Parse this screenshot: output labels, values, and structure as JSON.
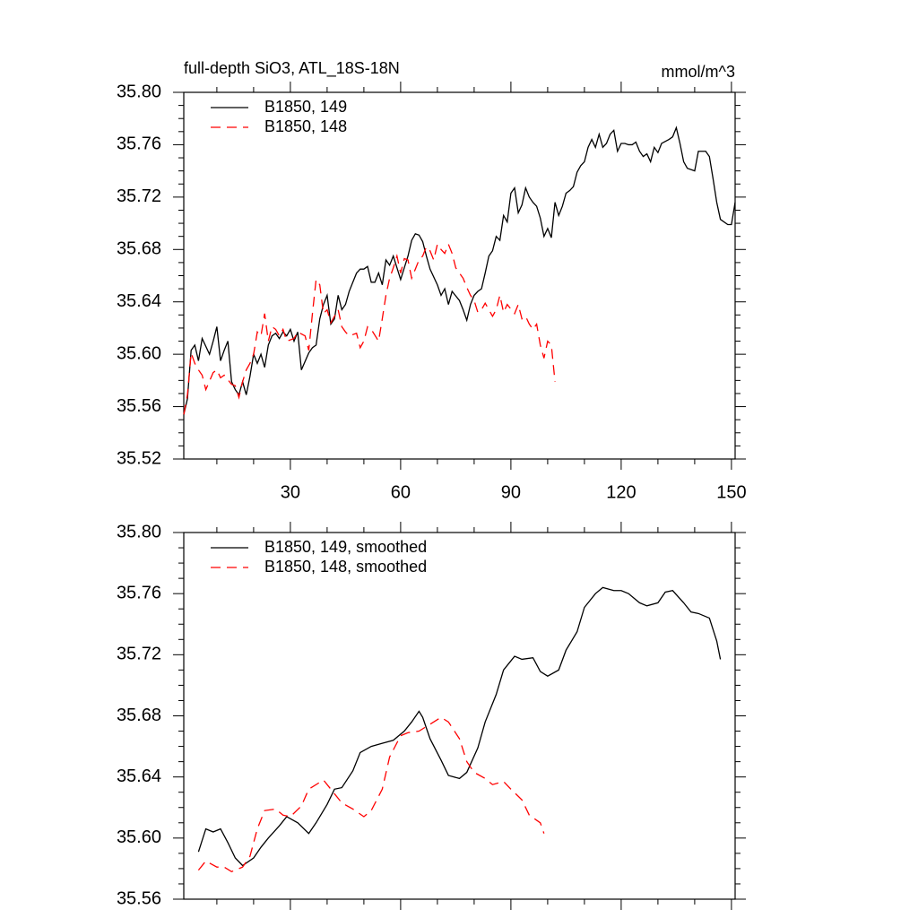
{
  "chart_data": [
    {
      "type": "line",
      "title": "full-depth SiO3, ATL_18S-18N",
      "units": "mmol/m^3",
      "xlim": [
        1,
        151
      ],
      "xticks": [
        30,
        60,
        90,
        120,
        150
      ],
      "x_minor_per_major": 3,
      "show_xtick_labels": true,
      "ylim": [
        35.52,
        35.8
      ],
      "yticks": [
        35.52,
        35.56,
        {
          "value": 35.6,
          "label": "35.60"
        },
        35.64,
        35.68,
        35.72,
        35.76,
        {
          "value": 35.8,
          "label": "35.80"
        }
      ],
      "y_minor_per_major": 4,
      "legend": "upper left",
      "series": [
        {
          "name": "B1850, 149",
          "color": "#000000",
          "dash": "solid",
          "x": [
            1,
            2,
            3,
            4,
            5,
            6,
            8,
            9,
            10,
            11,
            12,
            13,
            14,
            15,
            16,
            17,
            18,
            19,
            20,
            21,
            22,
            23,
            24,
            25,
            26,
            27,
            28,
            29,
            30,
            31,
            32,
            33,
            35,
            36,
            37,
            38,
            39,
            40,
            41,
            42,
            43,
            44,
            45,
            46,
            47,
            48,
            49,
            50,
            51,
            52,
            53,
            54,
            55,
            56,
            57,
            58,
            59,
            60,
            61,
            62,
            63,
            64,
            65,
            66,
            67,
            68,
            70,
            71,
            72,
            73,
            74,
            76,
            77,
            78,
            79,
            80,
            81,
            82,
            83,
            84,
            85,
            86,
            87,
            88,
            89,
            90,
            91,
            92,
            93,
            94,
            95,
            96,
            97,
            98,
            99,
            100,
            101,
            102,
            103,
            104,
            105,
            106,
            107,
            108,
            109,
            110,
            111,
            112,
            113,
            114,
            115,
            116,
            117,
            118,
            119,
            120,
            121,
            122,
            123,
            124,
            125,
            126,
            127,
            128,
            129,
            130,
            131,
            133,
            134,
            135,
            136,
            137,
            138,
            140,
            141,
            143,
            144,
            145,
            146,
            147,
            149,
            150,
            151
          ],
          "values": [
            35.554,
            35.566,
            35.603,
            35.607,
            35.595,
            35.612,
            35.6,
            35.61,
            35.621,
            35.595,
            35.603,
            35.61,
            35.579,
            35.573,
            35.569,
            35.579,
            35.569,
            35.583,
            35.6,
            35.593,
            35.6,
            35.59,
            35.607,
            35.614,
            35.616,
            35.612,
            35.617,
            35.614,
            35.619,
            35.61,
            35.617,
            35.588,
            35.601,
            35.605,
            35.607,
            35.627,
            35.638,
            35.645,
            35.623,
            35.627,
            35.645,
            35.634,
            35.638,
            35.648,
            35.655,
            35.662,
            35.665,
            35.665,
            35.667,
            35.655,
            35.655,
            35.662,
            35.653,
            35.672,
            35.668,
            35.675,
            35.666,
            35.657,
            35.666,
            35.675,
            35.687,
            35.692,
            35.691,
            35.686,
            35.675,
            35.665,
            35.653,
            35.645,
            35.65,
            35.638,
            35.648,
            35.641,
            35.634,
            35.626,
            35.638,
            35.645,
            35.648,
            35.65,
            35.662,
            35.675,
            35.679,
            35.69,
            35.687,
            35.706,
            35.701,
            35.723,
            35.727,
            35.708,
            35.714,
            35.727,
            35.72,
            35.716,
            35.713,
            35.704,
            35.69,
            35.696,
            35.689,
            35.716,
            35.706,
            35.713,
            35.723,
            35.725,
            35.728,
            35.739,
            35.744,
            35.747,
            35.758,
            35.764,
            35.758,
            35.768,
            35.758,
            35.761,
            35.768,
            35.771,
            35.755,
            35.761,
            35.761,
            35.76,
            35.76,
            35.762,
            35.755,
            35.751,
            35.753,
            35.747,
            35.758,
            35.754,
            35.761,
            35.764,
            35.766,
            35.773,
            35.761,
            35.747,
            35.742,
            35.74,
            35.755,
            35.755,
            35.751,
            35.734,
            35.716,
            35.703,
            35.699,
            35.699,
            35.716
          ]
        },
        {
          "name": "B1850, 148",
          "color": "#ff0000",
          "dash": "dashed",
          "x": [
            1,
            2,
            3,
            4,
            5,
            6,
            7,
            9,
            10,
            11,
            12,
            14,
            15,
            16,
            17,
            18,
            19,
            20,
            21,
            22,
            23,
            24,
            25,
            26,
            27,
            28,
            29,
            31,
            32,
            34,
            35,
            36,
            37,
            38,
            39,
            40,
            41,
            42,
            43,
            44,
            45,
            46,
            48,
            49,
            50,
            51,
            52,
            54,
            55,
            56,
            57,
            58,
            59,
            60,
            61,
            62,
            63,
            64,
            65,
            66,
            67,
            68,
            69,
            70,
            71,
            72,
            73,
            74,
            75,
            77,
            78,
            79,
            80,
            81,
            82,
            83,
            84,
            85,
            86,
            87,
            88,
            89,
            91,
            92,
            93,
            94,
            95,
            96,
            97,
            98,
            99,
            100,
            101,
            102
          ],
          "values": [
            35.554,
            35.569,
            35.601,
            35.593,
            35.588,
            35.584,
            35.573,
            35.586,
            35.588,
            35.582,
            35.584,
            35.577,
            35.576,
            35.567,
            35.579,
            35.588,
            35.593,
            35.6,
            35.617,
            35.614,
            35.631,
            35.61,
            35.621,
            35.619,
            35.614,
            35.619,
            35.61,
            35.612,
            35.617,
            35.614,
            35.603,
            35.631,
            35.657,
            35.653,
            35.631,
            35.634,
            35.624,
            35.629,
            35.634,
            35.621,
            35.617,
            35.614,
            35.616,
            35.605,
            35.61,
            35.621,
            35.619,
            35.61,
            35.627,
            35.645,
            35.658,
            35.666,
            35.675,
            35.662,
            35.673,
            35.672,
            35.658,
            35.665,
            35.672,
            35.675,
            35.682,
            35.679,
            35.672,
            35.684,
            35.68,
            35.677,
            35.684,
            35.677,
            35.666,
            35.658,
            35.651,
            35.645,
            35.641,
            35.632,
            35.634,
            35.639,
            35.634,
            35.629,
            35.634,
            35.645,
            35.632,
            35.638,
            35.631,
            35.638,
            35.627,
            35.629,
            35.623,
            35.619,
            35.623,
            35.607,
            35.597,
            35.61,
            35.607,
            35.579
          ]
        }
      ]
    },
    {
      "type": "line",
      "xlim": [
        1,
        151
      ],
      "xticks": [
        30,
        60,
        90,
        120,
        150
      ],
      "x_minor_per_major": 3,
      "show_xtick_labels": false,
      "ylim": [
        35.56,
        35.8
      ],
      "yticks": [
        35.56,
        {
          "value": 35.6,
          "label": "35.60"
        },
        35.64,
        35.68,
        35.72,
        35.76,
        {
          "value": 35.8,
          "label": "35.80"
        }
      ],
      "y_minor_per_major": 4,
      "legend": "upper left",
      "series": [
        {
          "name": "B1850, 149, smoothed",
          "color": "#000000",
          "dash": "solid",
          "x": [
            5,
            7,
            9,
            11,
            13,
            15,
            17,
            20,
            22,
            24,
            27,
            29,
            32,
            35,
            37,
            40,
            42,
            44,
            47,
            49,
            52,
            55,
            58,
            61,
            63,
            65,
            66,
            68,
            71,
            73,
            76,
            78,
            81,
            83,
            86,
            88,
            91,
            93,
            96,
            98,
            100,
            103,
            105,
            108,
            110,
            113,
            115,
            118,
            120,
            122,
            125,
            127,
            130,
            132,
            134,
            137,
            139,
            141,
            144,
            146,
            147
          ],
          "values": [
            35.591,
            35.606,
            35.604,
            35.606,
            35.597,
            35.587,
            35.582,
            35.587,
            35.594,
            35.6,
            35.608,
            35.614,
            35.61,
            35.603,
            35.61,
            35.622,
            35.632,
            35.633,
            35.644,
            35.656,
            35.66,
            35.662,
            35.664,
            35.67,
            35.676,
            35.683,
            35.679,
            35.665,
            35.651,
            35.641,
            35.639,
            35.643,
            35.659,
            35.676,
            35.694,
            35.71,
            35.719,
            35.717,
            35.718,
            35.709,
            35.706,
            35.71,
            35.723,
            35.735,
            35.751,
            35.76,
            35.764,
            35.762,
            35.762,
            35.76,
            35.754,
            35.752,
            35.754,
            35.761,
            35.762,
            35.754,
            35.748,
            35.747,
            35.744,
            35.729,
            35.717
          ]
        },
        {
          "name": "B1850, 148, smoothed",
          "color": "#ff0000",
          "dash": "dashed",
          "x": [
            5,
            7,
            10,
            12,
            14,
            17,
            19,
            21,
            23,
            26,
            28,
            30,
            33,
            35,
            39,
            41,
            44,
            47,
            50,
            52,
            55,
            57,
            60,
            62,
            65,
            67,
            71,
            73,
            76,
            78,
            80,
            83,
            85,
            88,
            90,
            93,
            95,
            98,
            99
          ],
          "values": [
            35.579,
            35.585,
            35.581,
            35.581,
            35.578,
            35.581,
            35.588,
            35.606,
            35.618,
            35.619,
            35.615,
            35.614,
            35.621,
            35.632,
            35.638,
            35.632,
            35.623,
            35.619,
            35.614,
            35.618,
            35.632,
            35.653,
            35.667,
            35.669,
            35.67,
            35.673,
            35.679,
            35.676,
            35.665,
            35.65,
            35.643,
            35.639,
            35.635,
            35.637,
            35.632,
            35.625,
            35.615,
            35.61,
            35.603
          ]
        }
      ]
    }
  ]
}
